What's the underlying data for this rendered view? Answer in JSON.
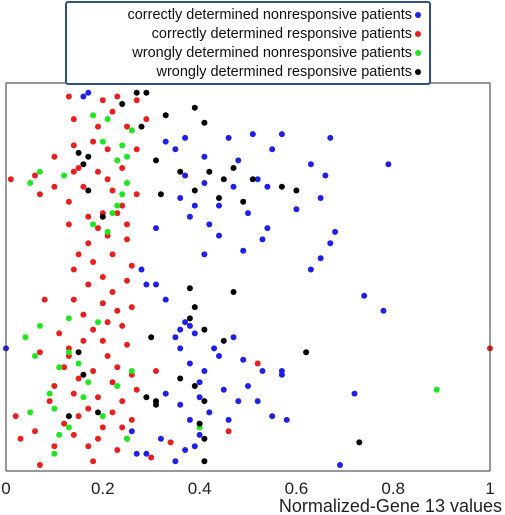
{
  "chart_data": {
    "type": "scatter",
    "xlabel": "Normalized-Gene 13 values",
    "ylabel": "",
    "xlim": [
      0,
      1
    ],
    "x_ticks": [
      {
        "value": 0,
        "label": "0"
      },
      {
        "value": 0.2,
        "label": "0.2"
      },
      {
        "value": 0.4,
        "label": "0.4"
      },
      {
        "value": 0.6,
        "label": "0.6"
      },
      {
        "value": 0.8,
        "label": "0.8"
      },
      {
        "value": 1,
        "label": "1"
      }
    ],
    "grid": false,
    "legend_position": "top",
    "series": [
      {
        "name": "correctly determined nonresponsive patients",
        "color": "#1f1fe6",
        "points": [
          {
            "x": 0.16,
            "y": 0.98
          },
          {
            "x": 0.17,
            "y": 0.99
          },
          {
            "x": 0.37,
            "y": 0.87
          },
          {
            "x": 0.33,
            "y": 0.86
          },
          {
            "x": 0.35,
            "y": 0.84
          },
          {
            "x": 0.46,
            "y": 0.87
          },
          {
            "x": 0.51,
            "y": 0.88
          },
          {
            "x": 0.57,
            "y": 0.88
          },
          {
            "x": 0.67,
            "y": 0.87
          },
          {
            "x": 0.55,
            "y": 0.84
          },
          {
            "x": 0.41,
            "y": 0.82
          },
          {
            "x": 0.48,
            "y": 0.81
          },
          {
            "x": 0.79,
            "y": 0.8
          },
          {
            "x": 0.63,
            "y": 0.8
          },
          {
            "x": 0.37,
            "y": 0.77
          },
          {
            "x": 0.52,
            "y": 0.76
          },
          {
            "x": 0.66,
            "y": 0.77
          },
          {
            "x": 0.41,
            "y": 0.75
          },
          {
            "x": 0.47,
            "y": 0.74
          },
          {
            "x": 0.54,
            "y": 0.74
          },
          {
            "x": 0.65,
            "y": 0.71
          },
          {
            "x": 0.44,
            "y": 0.69
          },
          {
            "x": 0.36,
            "y": 0.71
          },
          {
            "x": 0.39,
            "y": 0.69
          },
          {
            "x": 0.6,
            "y": 0.68
          },
          {
            "x": 0.38,
            "y": 0.66
          },
          {
            "x": 0.42,
            "y": 0.64
          },
          {
            "x": 0.5,
            "y": 0.67
          },
          {
            "x": 0.31,
            "y": 0.63
          },
          {
            "x": 0.44,
            "y": 0.61
          },
          {
            "x": 0.68,
            "y": 0.62
          },
          {
            "x": 0.54,
            "y": 0.63
          },
          {
            "x": 0.53,
            "y": 0.6
          },
          {
            "x": 0.67,
            "y": 0.59
          },
          {
            "x": 0.49,
            "y": 0.57
          },
          {
            "x": 0.41,
            "y": 0.56
          },
          {
            "x": 0.65,
            "y": 0.55
          },
          {
            "x": 0.63,
            "y": 0.52
          },
          {
            "x": 0.28,
            "y": 0.52
          },
          {
            "x": 0.29,
            "y": 0.48
          },
          {
            "x": 0.31,
            "y": 0.48
          },
          {
            "x": 0.74,
            "y": 0.45
          },
          {
            "x": 0.33,
            "y": 0.44
          },
          {
            "x": 0.78,
            "y": 0.41
          },
          {
            "x": 0.37,
            "y": 0.38
          },
          {
            "x": 0.38,
            "y": 0.37
          },
          {
            "x": 0.36,
            "y": 0.36
          },
          {
            "x": 0.35,
            "y": 0.34
          },
          {
            "x": 0.39,
            "y": 0.35
          },
          {
            "x": 0.47,
            "y": 0.34
          },
          {
            "x": 0.43,
            "y": 0.31
          },
          {
            "x": 0.36,
            "y": 0.31
          },
          {
            "x": 0.44,
            "y": 0.29
          },
          {
            "x": 0.49,
            "y": 0.28
          },
          {
            "x": 0.38,
            "y": 0.27
          },
          {
            "x": 0.41,
            "y": 0.25
          },
          {
            "x": 0.0,
            "y": 0.31
          },
          {
            "x": 0.53,
            "y": 0.25
          },
          {
            "x": 0.57,
            "y": 0.25
          },
          {
            "x": 0.57,
            "y": 0.24
          },
          {
            "x": 0.4,
            "y": 0.22
          },
          {
            "x": 0.5,
            "y": 0.21
          },
          {
            "x": 0.45,
            "y": 0.2
          },
          {
            "x": 0.33,
            "y": 0.19
          },
          {
            "x": 0.4,
            "y": 0.18
          },
          {
            "x": 0.48,
            "y": 0.17
          },
          {
            "x": 0.52,
            "y": 0.17
          },
          {
            "x": 0.36,
            "y": 0.16
          },
          {
            "x": 0.42,
            "y": 0.14
          },
          {
            "x": 0.55,
            "y": 0.13
          },
          {
            "x": 0.38,
            "y": 0.12
          },
          {
            "x": 0.46,
            "y": 0.12
          },
          {
            "x": 0.72,
            "y": 0.19
          },
          {
            "x": 0.58,
            "y": 0.12
          },
          {
            "x": 0.4,
            "y": 0.08
          },
          {
            "x": 0.39,
            "y": 0.05
          },
          {
            "x": 0.37,
            "y": 0.04
          },
          {
            "x": 0.29,
            "y": 0.03
          },
          {
            "x": 0.27,
            "y": 0.03
          },
          {
            "x": 0.35,
            "y": 0.01
          },
          {
            "x": 0.69,
            "y": 0.0
          },
          {
            "x": 0.26,
            "y": 0.09
          },
          {
            "x": 0.32,
            "y": 0.07
          }
        ]
      },
      {
        "name": "correctly determined responsive patients",
        "color": "#e61f1f",
        "points": [
          {
            "x": 0.13,
            "y": 0.98
          },
          {
            "x": 0.2,
            "y": 0.97
          },
          {
            "x": 0.23,
            "y": 0.98
          },
          {
            "x": 0.27,
            "y": 0.97
          },
          {
            "x": 0.22,
            "y": 0.94
          },
          {
            "x": 0.29,
            "y": 0.92
          },
          {
            "x": 0.14,
            "y": 0.92
          },
          {
            "x": 0.19,
            "y": 0.9
          },
          {
            "x": 0.25,
            "y": 0.9
          },
          {
            "x": 0.18,
            "y": 0.86
          },
          {
            "x": 0.27,
            "y": 0.84
          },
          {
            "x": 0.14,
            "y": 0.85
          },
          {
            "x": 0.21,
            "y": 0.84
          },
          {
            "x": 0.1,
            "y": 0.82
          },
          {
            "x": 0.23,
            "y": 0.81
          },
          {
            "x": 0.15,
            "y": 0.79
          },
          {
            "x": 0.19,
            "y": 0.78
          },
          {
            "x": 0.24,
            "y": 0.79
          },
          {
            "x": 0.06,
            "y": 0.77
          },
          {
            "x": 0.14,
            "y": 0.78
          },
          {
            "x": 0.21,
            "y": 0.76
          },
          {
            "x": 0.01,
            "y": 0.76
          },
          {
            "x": 0.1,
            "y": 0.74
          },
          {
            "x": 0.16,
            "y": 0.74
          },
          {
            "x": 0.22,
            "y": 0.73
          },
          {
            "x": 0.27,
            "y": 0.72
          },
          {
            "x": 0.07,
            "y": 0.72
          },
          {
            "x": 0.13,
            "y": 0.7
          },
          {
            "x": 0.24,
            "y": 0.69
          },
          {
            "x": 0.2,
            "y": 0.67
          },
          {
            "x": 0.17,
            "y": 0.66
          },
          {
            "x": 0.23,
            "y": 0.67
          },
          {
            "x": 0.13,
            "y": 0.64
          },
          {
            "x": 0.25,
            "y": 0.64
          },
          {
            "x": 0.19,
            "y": 0.63
          },
          {
            "x": 0.21,
            "y": 0.61
          },
          {
            "x": 0.25,
            "y": 0.6
          },
          {
            "x": 0.17,
            "y": 0.59
          },
          {
            "x": 0.15,
            "y": 0.56
          },
          {
            "x": 0.22,
            "y": 0.56
          },
          {
            "x": 0.18,
            "y": 0.54
          },
          {
            "x": 0.26,
            "y": 0.53
          },
          {
            "x": 0.14,
            "y": 0.52
          },
          {
            "x": 0.2,
            "y": 0.5
          },
          {
            "x": 0.25,
            "y": 0.49
          },
          {
            "x": 0.17,
            "y": 0.48
          },
          {
            "x": 0.22,
            "y": 0.46
          },
          {
            "x": 0.08,
            "y": 0.44
          },
          {
            "x": 0.14,
            "y": 0.44
          },
          {
            "x": 0.2,
            "y": 0.43
          },
          {
            "x": 0.26,
            "y": 0.42
          },
          {
            "x": 0.23,
            "y": 0.41
          },
          {
            "x": 0.16,
            "y": 0.4
          },
          {
            "x": 0.21,
            "y": 0.38
          },
          {
            "x": 0.18,
            "y": 0.36
          },
          {
            "x": 0.24,
            "y": 0.37
          },
          {
            "x": 0.11,
            "y": 0.35
          },
          {
            "x": 0.16,
            "y": 0.33
          },
          {
            "x": 0.2,
            "y": 0.33
          },
          {
            "x": 0.25,
            "y": 0.32
          },
          {
            "x": 0.13,
            "y": 0.31
          },
          {
            "x": 0.07,
            "y": 0.3
          },
          {
            "x": 0.13,
            "y": 0.29
          },
          {
            "x": 0.21,
            "y": 0.29
          },
          {
            "x": 0.23,
            "y": 0.26
          },
          {
            "x": 0.12,
            "y": 0.26
          },
          {
            "x": 0.18,
            "y": 0.25
          },
          {
            "x": 0.26,
            "y": 0.24
          },
          {
            "x": 0.31,
            "y": 0.25
          },
          {
            "x": 0.52,
            "y": 0.27
          },
          {
            "x": 0.15,
            "y": 0.23
          },
          {
            "x": 0.22,
            "y": 0.22
          },
          {
            "x": 0.1,
            "y": 0.21
          },
          {
            "x": 0.27,
            "y": 0.2
          },
          {
            "x": 0.14,
            "y": 0.19
          },
          {
            "x": 0.19,
            "y": 0.18
          },
          {
            "x": 0.24,
            "y": 0.17
          },
          {
            "x": 0.09,
            "y": 0.17
          },
          {
            "x": 0.17,
            "y": 0.15
          },
          {
            "x": 0.22,
            "y": 0.14
          },
          {
            "x": 0.02,
            "y": 0.13
          },
          {
            "x": 0.15,
            "y": 0.13
          },
          {
            "x": 0.26,
            "y": 0.12
          },
          {
            "x": 0.12,
            "y": 0.11
          },
          {
            "x": 0.2,
            "y": 0.1
          },
          {
            "x": 0.24,
            "y": 0.1
          },
          {
            "x": 0.06,
            "y": 0.09
          },
          {
            "x": 0.14,
            "y": 0.08
          },
          {
            "x": 0.19,
            "y": 0.07
          },
          {
            "x": 0.25,
            "y": 0.07
          },
          {
            "x": 0.03,
            "y": 0.07
          },
          {
            "x": 0.1,
            "y": 0.05
          },
          {
            "x": 0.17,
            "y": 0.05
          },
          {
            "x": 0.23,
            "y": 0.04
          },
          {
            "x": 0.34,
            "y": 0.06
          },
          {
            "x": 0.3,
            "y": 0.02
          },
          {
            "x": 0.07,
            "y": 0.0
          },
          {
            "x": 0.18,
            "y": 0.01
          },
          {
            "x": 1.0,
            "y": 0.31
          },
          {
            "x": 0.46,
            "y": 0.09
          }
        ]
      },
      {
        "name": "wrongly determined nonresponsive patients",
        "color": "#1fe61f",
        "points": [
          {
            "x": 0.18,
            "y": 0.93
          },
          {
            "x": 0.21,
            "y": 0.92
          },
          {
            "x": 0.26,
            "y": 0.89
          },
          {
            "x": 0.2,
            "y": 0.86
          },
          {
            "x": 0.24,
            "y": 0.85
          },
          {
            "x": 0.25,
            "y": 0.82
          },
          {
            "x": 0.23,
            "y": 0.81
          },
          {
            "x": 0.07,
            "y": 0.78
          },
          {
            "x": 0.12,
            "y": 0.77
          },
          {
            "x": 0.25,
            "y": 0.75
          },
          {
            "x": 0.05,
            "y": 0.75
          },
          {
            "x": 0.24,
            "y": 0.72
          },
          {
            "x": 0.23,
            "y": 0.69
          },
          {
            "x": 0.22,
            "y": 0.67
          },
          {
            "x": 0.18,
            "y": 0.64
          },
          {
            "x": 0.21,
            "y": 0.62
          },
          {
            "x": 0.13,
            "y": 0.39
          },
          {
            "x": 0.19,
            "y": 0.38
          },
          {
            "x": 0.07,
            "y": 0.37
          },
          {
            "x": 0.04,
            "y": 0.34
          },
          {
            "x": 0.13,
            "y": 0.3
          },
          {
            "x": 0.06,
            "y": 0.29
          },
          {
            "x": 0.15,
            "y": 0.27
          },
          {
            "x": 0.26,
            "y": 0.25
          },
          {
            "x": 0.11,
            "y": 0.26
          },
          {
            "x": 0.17,
            "y": 0.22
          },
          {
            "x": 0.23,
            "y": 0.21
          },
          {
            "x": 0.09,
            "y": 0.19
          },
          {
            "x": 0.16,
            "y": 0.18
          },
          {
            "x": 0.89,
            "y": 0.2
          },
          {
            "x": 0.1,
            "y": 0.15
          },
          {
            "x": 0.2,
            "y": 0.13
          },
          {
            "x": 0.05,
            "y": 0.14
          },
          {
            "x": 0.13,
            "y": 0.1
          },
          {
            "x": 0.11,
            "y": 0.08
          },
          {
            "x": 0.25,
            "y": 0.07
          },
          {
            "x": 0.4,
            "y": 0.1
          },
          {
            "x": 0.1,
            "y": 0.03
          }
        ]
      },
      {
        "name": "wrongly determined responsive patients",
        "color": "#000000",
        "points": [
          {
            "x": 0.27,
            "y": 0.99
          },
          {
            "x": 0.29,
            "y": 0.99
          },
          {
            "x": 0.24,
            "y": 0.96
          },
          {
            "x": 0.39,
            "y": 0.95
          },
          {
            "x": 0.33,
            "y": 0.93
          },
          {
            "x": 0.41,
            "y": 0.91
          },
          {
            "x": 0.28,
            "y": 0.9
          },
          {
            "x": 0.15,
            "y": 0.83
          },
          {
            "x": 0.17,
            "y": 0.82
          },
          {
            "x": 0.31,
            "y": 0.81
          },
          {
            "x": 0.16,
            "y": 0.8
          },
          {
            "x": 0.47,
            "y": 0.79
          },
          {
            "x": 0.36,
            "y": 0.78
          },
          {
            "x": 0.42,
            "y": 0.78
          },
          {
            "x": 0.45,
            "y": 0.76
          },
          {
            "x": 0.51,
            "y": 0.76
          },
          {
            "x": 0.57,
            "y": 0.74
          },
          {
            "x": 0.6,
            "y": 0.73
          },
          {
            "x": 0.39,
            "y": 0.73
          },
          {
            "x": 0.44,
            "y": 0.71
          },
          {
            "x": 0.49,
            "y": 0.7
          },
          {
            "x": 0.17,
            "y": 0.73
          },
          {
            "x": 0.32,
            "y": 0.72
          },
          {
            "x": 0.2,
            "y": 0.66
          },
          {
            "x": 0.38,
            "y": 0.47
          },
          {
            "x": 0.47,
            "y": 0.46
          },
          {
            "x": 0.39,
            "y": 0.42
          },
          {
            "x": 0.62,
            "y": 0.3
          },
          {
            "x": 0.38,
            "y": 0.39
          },
          {
            "x": 0.41,
            "y": 0.36
          },
          {
            "x": 0.45,
            "y": 0.33
          },
          {
            "x": 0.3,
            "y": 0.34
          },
          {
            "x": 0.15,
            "y": 0.3
          },
          {
            "x": 0.16,
            "y": 0.24
          },
          {
            "x": 0.36,
            "y": 0.23
          },
          {
            "x": 0.39,
            "y": 0.21
          },
          {
            "x": 0.29,
            "y": 0.18
          },
          {
            "x": 0.31,
            "y": 0.17
          },
          {
            "x": 0.41,
            "y": 0.17
          },
          {
            "x": 0.19,
            "y": 0.14
          },
          {
            "x": 0.13,
            "y": 0.13
          },
          {
            "x": 0.31,
            "y": 0.16
          },
          {
            "x": 0.4,
            "y": 0.11
          },
          {
            "x": 0.41,
            "y": 0.07
          },
          {
            "x": 0.73,
            "y": 0.06
          },
          {
            "x": 0.41,
            "y": 0.01
          }
        ]
      }
    ]
  }
}
